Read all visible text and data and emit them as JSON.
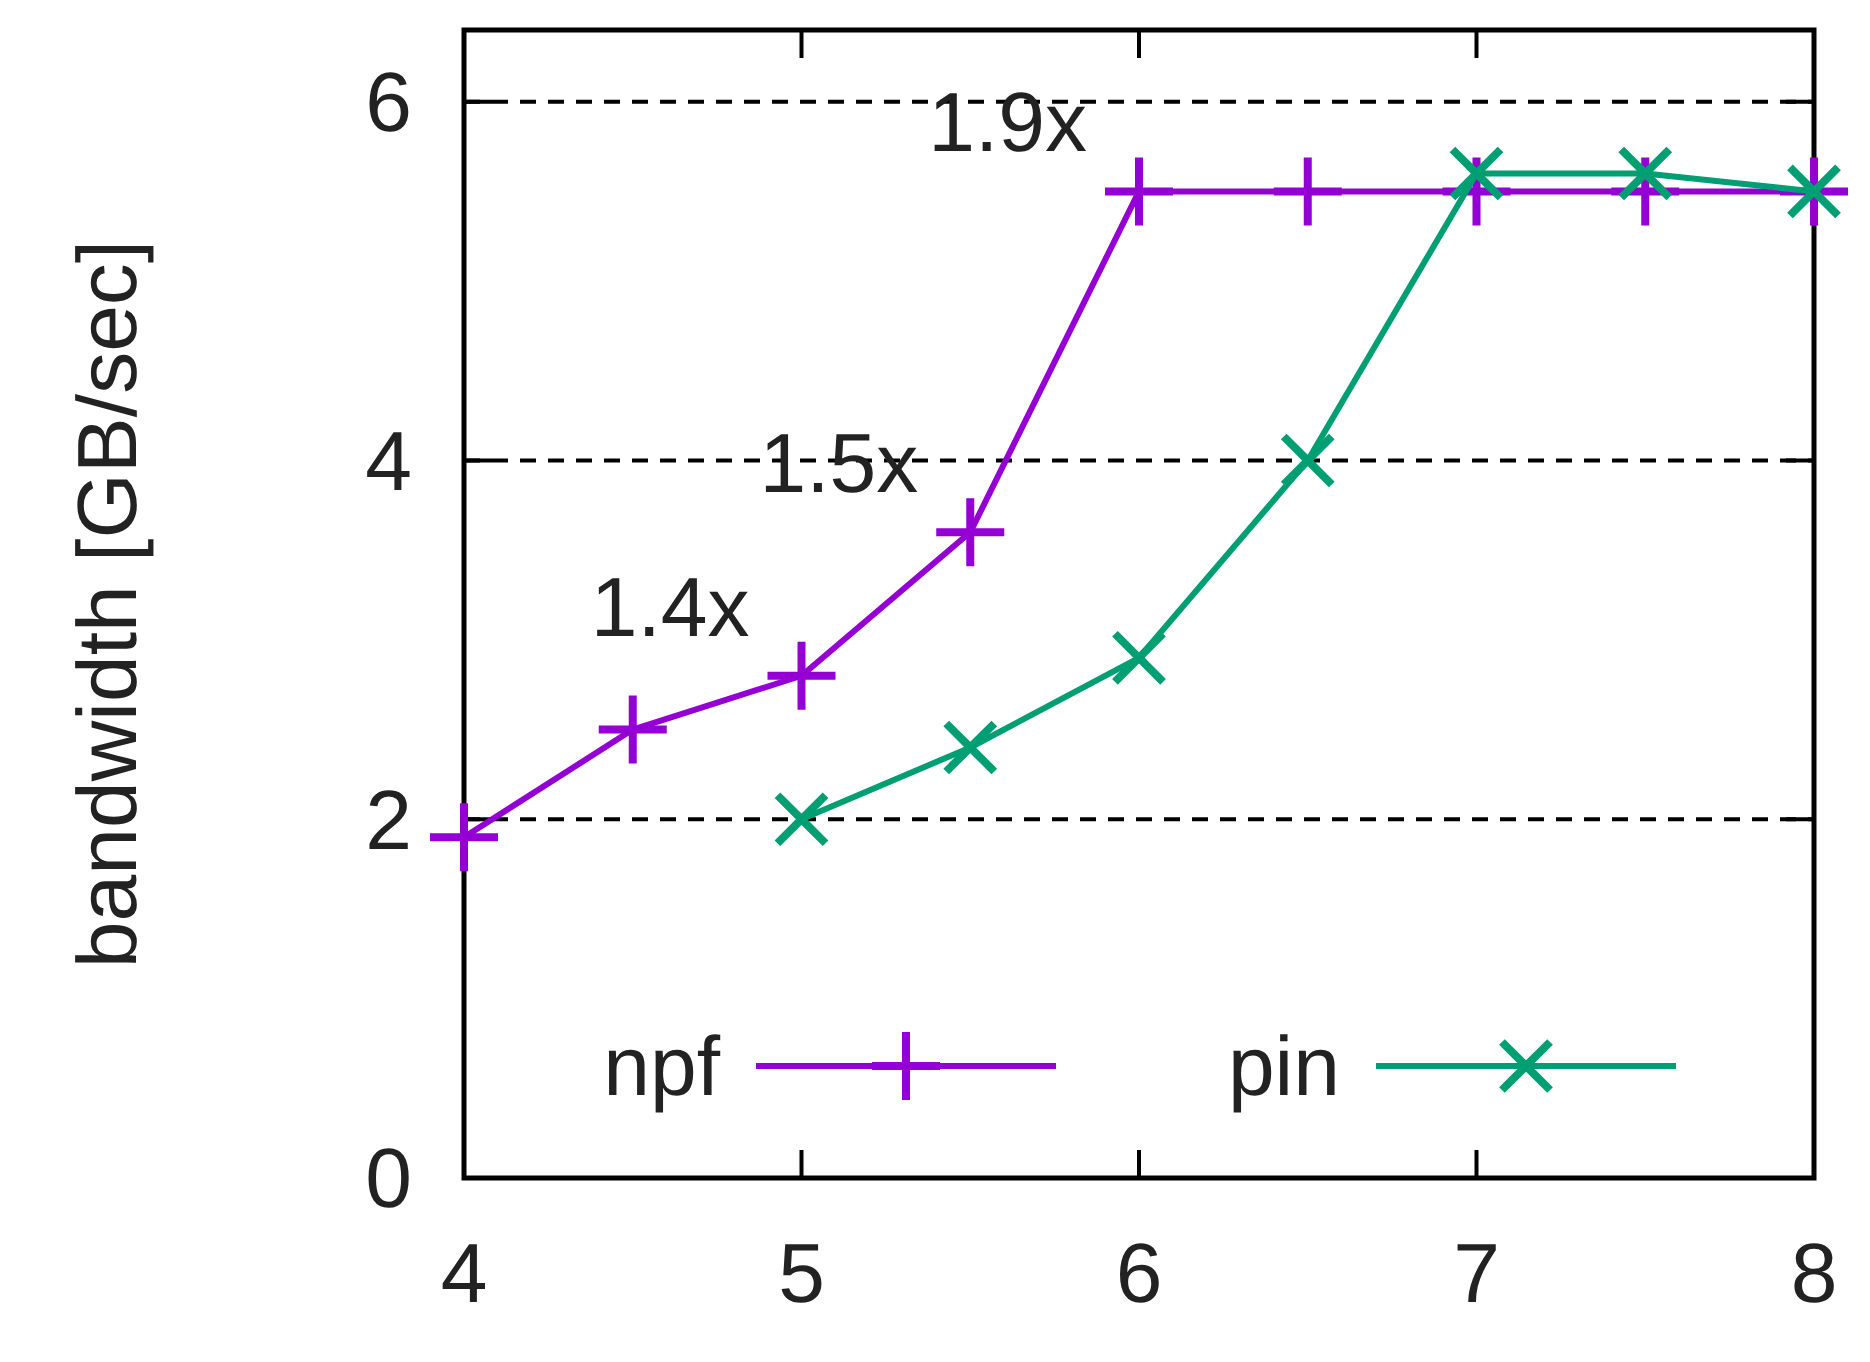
{
  "chart_data": {
    "type": "line",
    "ylabel": "bandwidth [GB/sec]",
    "xlim": [
      4,
      8
    ],
    "xticks": [
      4,
      5,
      6,
      7,
      8
    ],
    "ylim": [
      0,
      6.4
    ],
    "yticks": [
      0,
      2,
      4,
      6
    ],
    "grid": "y",
    "legend": "bottom",
    "marker": "cross",
    "series": [
      {
        "name": "npf",
        "color": "#9400d3",
        "x": [
          4,
          4.5,
          5,
          5.5,
          6,
          6.5,
          7,
          7.5,
          8
        ],
        "values": [
          1.9,
          2.5,
          2.8,
          3.6,
          5.5,
          5.5,
          5.5,
          5.5,
          5.5
        ]
      },
      {
        "name": "pin",
        "color": "#009e73",
        "x": [
          5,
          5.5,
          6,
          6.5,
          7,
          7.5,
          8
        ],
        "values": [
          2.0,
          2.4,
          2.9,
          4.0,
          5.6,
          5.6,
          5.5
        ]
      }
    ],
    "annotations": [
      {
        "text": "1.4x",
        "x": 5,
        "y": 2.8
      },
      {
        "text": "1.5x",
        "x": 5.5,
        "y": 3.6
      },
      {
        "text": "1.9x",
        "x": 6,
        "y": 5.5
      }
    ]
  }
}
